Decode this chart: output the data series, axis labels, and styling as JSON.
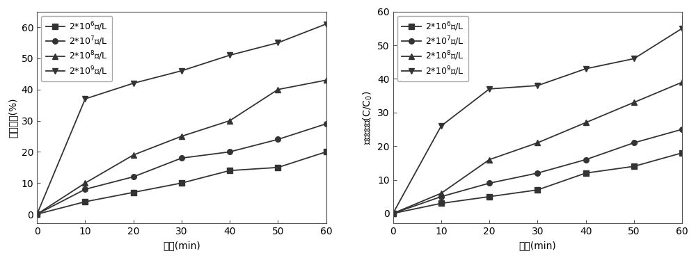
{
  "left_chart": {
    "xlabel": "时间(min)",
    "ylabel": "磺胺噓嘎(%)",
    "xlim": [
      0,
      60
    ],
    "ylim": [
      -3,
      65
    ],
    "yticks": [
      0,
      10,
      20,
      30,
      40,
      50,
      60
    ],
    "xticks": [
      0,
      10,
      20,
      30,
      40,
      50,
      60
    ],
    "series": [
      {
        "label": "2*10$^6$个/L",
        "x": [
          0,
          10,
          20,
          30,
          40,
          50,
          60
        ],
        "y": [
          0,
          4,
          7,
          10,
          14,
          15,
          20
        ],
        "marker": "s"
      },
      {
        "label": "2*10$^7$个/L",
        "x": [
          0,
          10,
          20,
          30,
          40,
          50,
          60
        ],
        "y": [
          0,
          8,
          12,
          18,
          20,
          24,
          29
        ],
        "marker": "o"
      },
      {
        "label": "2*10$^8$个/L",
        "x": [
          0,
          10,
          20,
          30,
          40,
          50,
          60
        ],
        "y": [
          0,
          10,
          19,
          25,
          30,
          40,
          43
        ],
        "marker": "^"
      },
      {
        "label": "2*10$^9$个/L",
        "x": [
          0,
          10,
          20,
          30,
          40,
          50,
          60
        ],
        "y": [
          0,
          37,
          42,
          46,
          51,
          55,
          61
        ],
        "marker": "v"
      }
    ]
  },
  "right_chart": {
    "xlabel": "时间(min)",
    "ylabel": "磺胺甲氧嘎(C/C$_0$)",
    "xlim": [
      0,
      60
    ],
    "ylim": [
      -3,
      60
    ],
    "yticks": [
      0,
      10,
      20,
      30,
      40,
      50,
      60
    ],
    "xticks": [
      0,
      10,
      20,
      30,
      40,
      50,
      60
    ],
    "series": [
      {
        "label": "2*10$^6$个/L",
        "x": [
          0,
          10,
          20,
          30,
          40,
          50,
          60
        ],
        "y": [
          0,
          3,
          5,
          7,
          12,
          14,
          18
        ],
        "marker": "s"
      },
      {
        "label": "2*10$^7$个/L",
        "x": [
          0,
          10,
          20,
          30,
          40,
          50,
          60
        ],
        "y": [
          0,
          5,
          9,
          12,
          16,
          21,
          25
        ],
        "marker": "o"
      },
      {
        "label": "2*10$^8$个/L",
        "x": [
          0,
          10,
          20,
          30,
          40,
          50,
          60
        ],
        "y": [
          0,
          6,
          16,
          21,
          27,
          33,
          39
        ],
        "marker": "^"
      },
      {
        "label": "2*10$^9$个/L",
        "x": [
          0,
          10,
          20,
          30,
          40,
          50,
          60
        ],
        "y": [
          0,
          26,
          37,
          38,
          43,
          46,
          55
        ],
        "marker": "v"
      }
    ]
  },
  "background_color": "#ffffff",
  "line_color": "#333333",
  "font_size": 10,
  "legend_fontsize": 9,
  "tick_fontsize": 10,
  "linewidth": 1.3,
  "markersize": 5.5
}
